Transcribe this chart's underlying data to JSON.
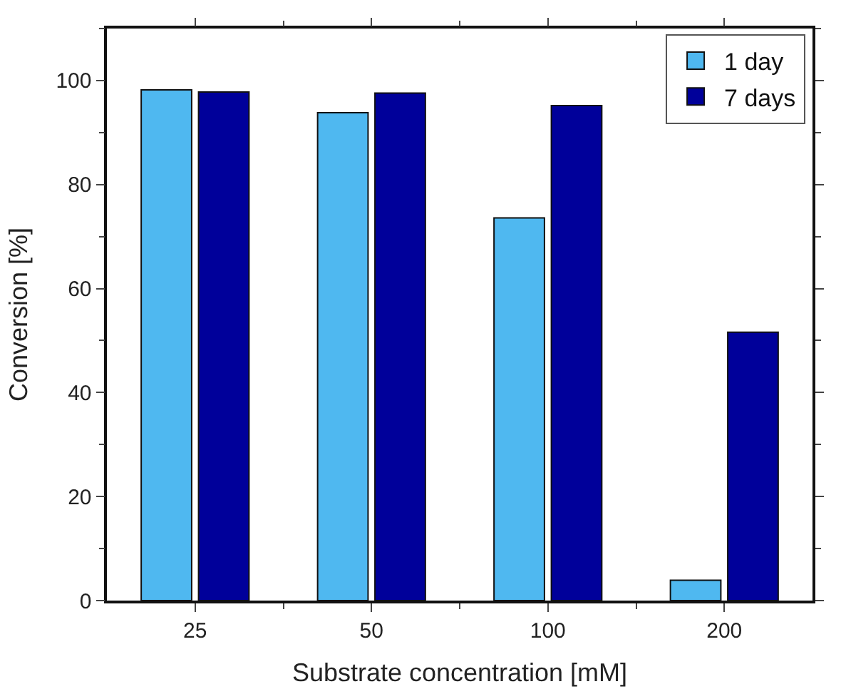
{
  "chart_data": {
    "type": "bar",
    "xlabel": "Substrate concentration [mM]",
    "ylabel": "Conversion [%]",
    "categories": [
      "25",
      "50",
      "100",
      "200"
    ],
    "series": [
      {
        "name": "1 day",
        "color": "#4fb8f0",
        "values": [
          98.2,
          93.8,
          73.6,
          3.9
        ]
      },
      {
        "name": "7 days",
        "color": "#00009a",
        "values": [
          97.8,
          97.6,
          95.2,
          51.6
        ]
      }
    ],
    "ylim": [
      0,
      110
    ],
    "yticks": [
      0,
      20,
      40,
      60,
      80,
      100
    ],
    "legend": "top right"
  }
}
